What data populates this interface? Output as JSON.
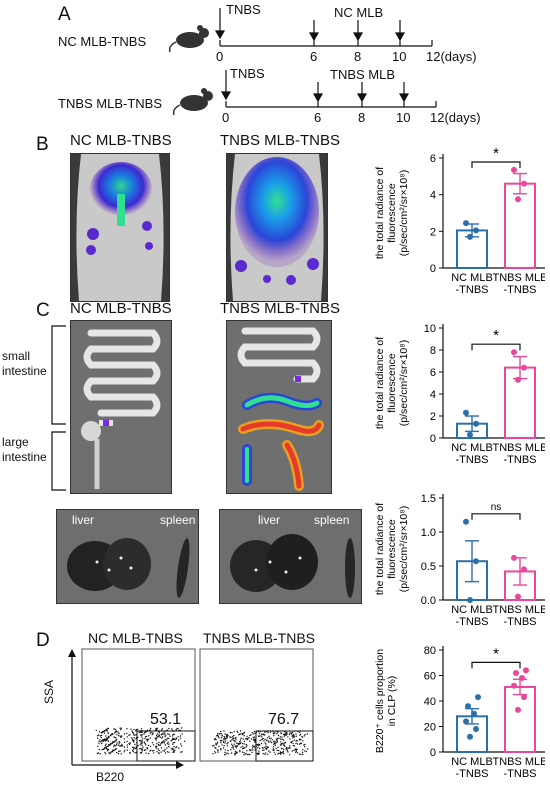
{
  "panels": {
    "A": "A",
    "B": "B",
    "C": "C",
    "D": "D"
  },
  "timeline": {
    "row1": {
      "label": "NC MLB-TNBS",
      "event_start": "TNBS",
      "event_mid": "NC MLB",
      "ticks": [
        "0",
        "6",
        "8",
        "10",
        "12(days)"
      ]
    },
    "row2": {
      "label": "TNBS MLB-TNBS",
      "event_start": "TNBS",
      "event_mid": "TNBS MLB",
      "ticks": [
        "0",
        "6",
        "8",
        "10",
        "12(days)"
      ]
    }
  },
  "groups": {
    "nc": "NC MLB-TNBS",
    "tnbs": "TNBS MLB-TNBS"
  },
  "intestine_labels": {
    "small": [
      "small",
      "intestine"
    ],
    "large": [
      "large",
      "intestine"
    ]
  },
  "organ_labels": {
    "liver": "liver",
    "spleen": "spleen"
  },
  "flow": {
    "y_axis": "SSA",
    "x_axis": "B220",
    "nc_value": "53.1",
    "tnbs_value": "76.7"
  },
  "colors": {
    "nc": "#2a6fa8",
    "tnbs": "#e8479b"
  },
  "chart_data": [
    {
      "type": "bar",
      "id": "B",
      "categories": [
        "NC MLB\n-TNBS",
        "TNBS MLB\n-TNBS"
      ],
      "values": [
        2.05,
        4.6
      ],
      "errors": [
        0.35,
        0.55
      ],
      "points": [
        [
          1.7,
          2.05,
          2.45
        ],
        [
          3.75,
          4.6,
          5.35
        ]
      ],
      "ylabel_lines": [
        "the total radiance of",
        "fluorescence",
        "(p/sec/cm²/sr×10⁸)"
      ],
      "ylim": [
        0,
        6
      ],
      "yticks": [
        0,
        2,
        4,
        6
      ],
      "significance": "*"
    },
    {
      "type": "bar",
      "id": "C1",
      "categories": [
        "NC MLB\n-TNBS",
        "TNBS MLB\n-TNBS"
      ],
      "values": [
        1.3,
        6.4
      ],
      "errors": [
        0.7,
        1.0
      ],
      "points": [
        [
          0.3,
          1.3,
          2.3
        ],
        [
          5.3,
          6.4,
          7.8
        ]
      ],
      "ylabel_lines": [
        "the total radiance of",
        "fluorescence",
        "(p/sec/cm²/sr×10⁸)"
      ],
      "ylim": [
        0,
        10
      ],
      "yticks": [
        0,
        2,
        4,
        6,
        8,
        10
      ],
      "significance": "*"
    },
    {
      "type": "bar",
      "id": "C2",
      "categories": [
        "NC MLB\n-TNBS",
        "TNBS MLB\n-TNBS"
      ],
      "values": [
        0.57,
        0.42
      ],
      "errors": [
        0.3,
        0.2
      ],
      "points": [
        [
          0.0,
          0.57,
          1.15
        ],
        [
          0.05,
          0.45,
          0.62
        ]
      ],
      "ylabel_lines": [
        "the total radiance of",
        "fluorescence",
        "(p/sec/cm²/sr×10⁸)"
      ],
      "ylim": [
        0,
        1.5
      ],
      "yticks": [
        0.0,
        0.5,
        1.0,
        1.5
      ],
      "significance": "ns"
    },
    {
      "type": "bar",
      "id": "D",
      "categories": [
        "NC MLB\n-TNBS",
        "TNBS MLB\n-TNBS"
      ],
      "values": [
        28,
        51
      ],
      "errors": [
        6,
        6
      ],
      "points": [
        [
          12,
          18,
          24,
          30,
          36,
          43
        ],
        [
          33,
          43,
          52,
          58,
          62,
          64
        ]
      ],
      "ylabel_lines": [
        "B220⁺ cells proportion",
        "in CLP (%)"
      ],
      "ylim": [
        0,
        80
      ],
      "yticks": [
        0,
        20,
        40,
        60,
        80
      ],
      "significance": "*"
    }
  ]
}
